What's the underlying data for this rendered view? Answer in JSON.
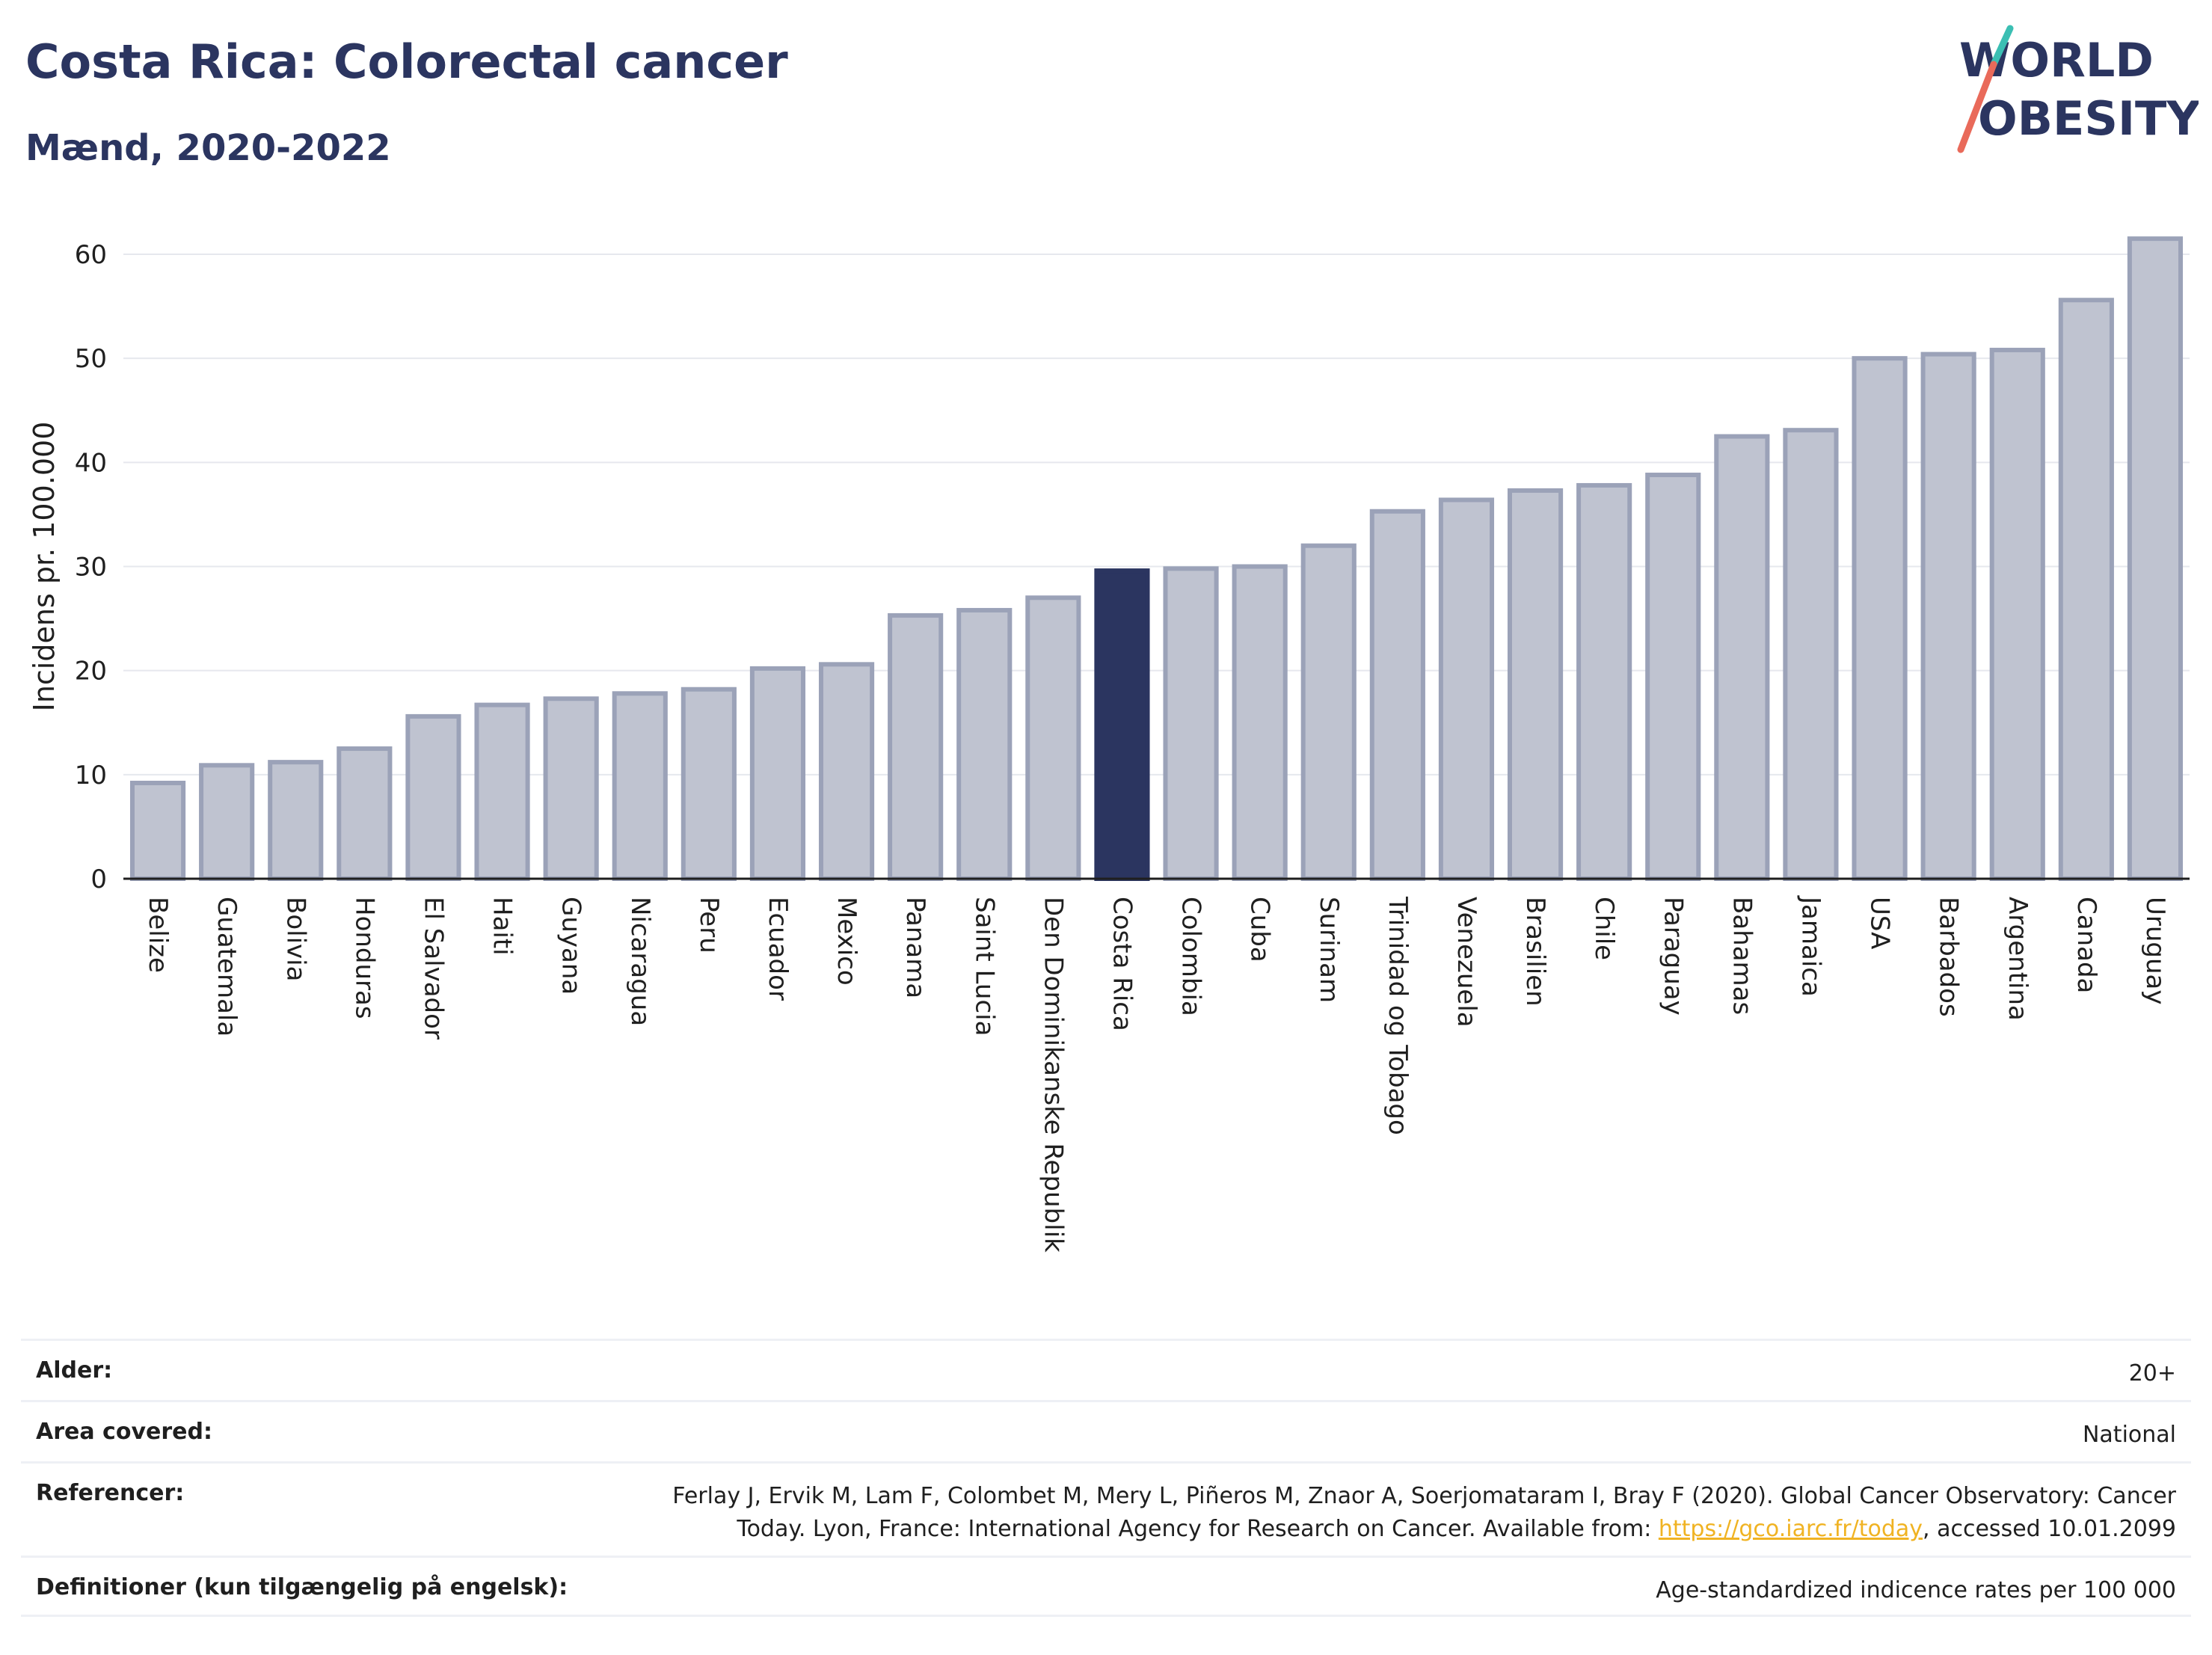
{
  "header": {
    "title": "Costa Rica: Colorectal cancer",
    "subtitle": "Mænd, 2020-2022"
  },
  "logo": {
    "line1": "WORLD",
    "line2": "OBESITY"
  },
  "chart_data": {
    "type": "bar",
    "ylabel": "Incidens pr. 100.000",
    "xlabel": "",
    "ylim": [
      0,
      65
    ],
    "yticks": [
      0,
      10,
      20,
      30,
      40,
      50,
      60
    ],
    "grid": true,
    "highlight": "Costa Rica",
    "colors": {
      "bar": "#bfc3d0",
      "bar_border": "#9ba2b8",
      "highlight": "#2b3560"
    },
    "categories": [
      "Belize",
      "Guatemala",
      "Bolivia",
      "Honduras",
      "El Salvador",
      "Haiti",
      "Guyana",
      "Nicaragua",
      "Peru",
      "Ecuador",
      "Mexico",
      "Panama",
      "Saint Lucia",
      "Den Dominikanske Republik",
      "Costa Rica",
      "Colombia",
      "Cuba",
      "Surinam",
      "Trinidad og Tobago",
      "Venezuela",
      "Brasilien",
      "Chile",
      "Paraguay",
      "Bahamas",
      "Jamaica",
      "USA",
      "Barbados",
      "Argentina",
      "Canada",
      "Uruguay"
    ],
    "values": [
      9.2,
      10.9,
      11.2,
      12.5,
      15.6,
      16.7,
      17.3,
      17.8,
      18.2,
      20.2,
      20.6,
      25.3,
      25.8,
      27.0,
      29.6,
      29.8,
      30.0,
      32.0,
      35.3,
      36.4,
      37.3,
      37.8,
      38.8,
      42.5,
      43.1,
      50.0,
      50.4,
      50.8,
      55.6,
      61.5
    ]
  },
  "meta": [
    {
      "label": "Alder:",
      "value": "20+"
    },
    {
      "label": "Area covered:",
      "value": "National"
    },
    {
      "label": "Referencer:",
      "value_pre": "Ferlay J, Ervik M, Lam F, Colombet M, Mery L, Piñeros M, Znaor A, Soerjomataram I, Bray F (2020). Global Cancer Observatory: Cancer Today. Lyon, France: International Agency for Research on Cancer. Available from: ",
      "link": "https://gco.iarc.fr/today",
      "value_post": ", accessed 10.01.2099"
    },
    {
      "label": "Definitioner (kun tilgængelig på engelsk):",
      "value": "Age-standardized indicence rates per 100 000"
    }
  ]
}
